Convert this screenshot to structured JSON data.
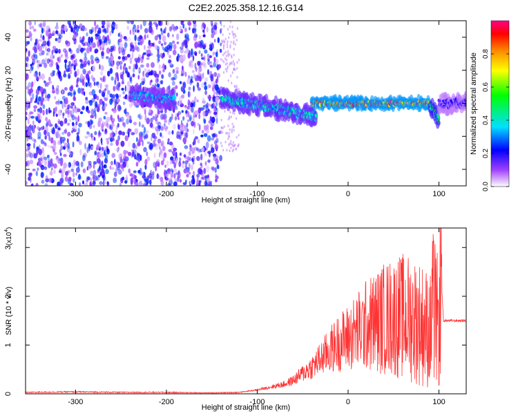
{
  "title": "C2E2.2025.358.12.16.G14",
  "chart_data": [
    {
      "type": "heatmap",
      "name": "spectrogram",
      "xlabel": "Height of straight line (km)",
      "ylabel": "Frequency (Hz)",
      "xlim": [
        -355,
        130
      ],
      "ylim": [
        -50,
        50
      ],
      "xticks": [
        -300,
        -200,
        -100,
        0,
        100
      ],
      "yticks": [
        -40,
        -20,
        0,
        20,
        40
      ],
      "colorbar": {
        "label": "Normalized spectral amplitude",
        "range": [
          0.0,
          1.0
        ],
        "ticks": [
          0.0,
          0.2,
          0.4,
          0.6,
          0.8
        ],
        "tick_labels": [
          "0.0",
          "0.2",
          "0.4",
          "0.6",
          "0.8"
        ],
        "colormap": [
          "#ffffff",
          "#7a00ff",
          "#0000ff",
          "#00e0ff",
          "#00ff00",
          "#ffff00",
          "#ff8800",
          "#ff0000",
          "#ff0088"
        ]
      },
      "signal_track": {
        "segments": [
          {
            "x_range": [
              -355,
              -140
            ],
            "pattern": "broadband noise",
            "amplitude": 0.15
          },
          {
            "x_range": [
              -240,
              -190
            ],
            "freq_center": [
              5,
              2
            ],
            "amplitude": 0.35
          },
          {
            "x_range": [
              -140,
              -35
            ],
            "freq_center": [
              3,
              -8
            ],
            "amplitude": 0.4
          },
          {
            "x_range": [
              -40,
              90
            ],
            "freq_center": [
              0,
              0
            ],
            "amplitude": 0.9
          },
          {
            "x_range": [
              90,
              100
            ],
            "freq_center": [
              0,
              -10
            ],
            "amplitude": 0.5
          },
          {
            "x_range": [
              100,
              130
            ],
            "freq_center": [
              0,
              0
            ],
            "amplitude": 0.2
          }
        ]
      }
    },
    {
      "type": "line",
      "name": "snr",
      "xlabel": "Height of straight line (km)",
      "ylabel": "SNR (10 * v/v)",
      "scale_label": "(x10",
      "scale_exp": "4",
      "xlim": [
        -355,
        130
      ],
      "ylim": [
        0,
        3.4
      ],
      "xticks": [
        -300,
        -200,
        -100,
        0,
        100
      ],
      "yticks": [
        0,
        1,
        2,
        3
      ],
      "color": "#ff3333",
      "envelope": {
        "x": [
          -355,
          -300,
          -250,
          -200,
          -150,
          -120,
          -100,
          -90,
          -80,
          -70,
          -60,
          -50,
          -40,
          -30,
          -20,
          -10,
          0,
          10,
          20,
          30,
          40,
          50,
          60,
          70,
          80,
          90,
          95,
          100,
          103,
          105,
          110,
          130
        ],
        "y": [
          0.03,
          0.04,
          0.03,
          0.03,
          0.02,
          0.03,
          0.08,
          0.12,
          0.16,
          0.2,
          0.28,
          0.42,
          0.55,
          0.72,
          0.9,
          1.05,
          1.15,
          1.28,
          1.4,
          1.48,
          1.55,
          1.58,
          1.58,
          1.55,
          1.45,
          1.3,
          1.2,
          1.0,
          2.2,
          1.5,
          1.5,
          1.5
        ]
      }
    }
  ]
}
